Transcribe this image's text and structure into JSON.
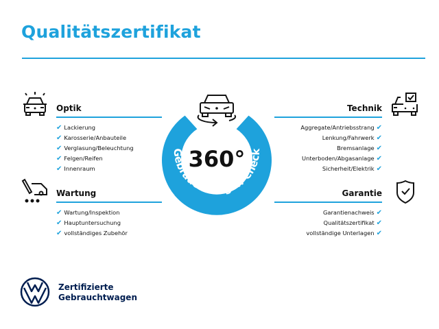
{
  "title": "Qualitätszertifikat",
  "accent_color": "#1ea2dc",
  "brand_color": "#001e50",
  "badge": {
    "number": "360°",
    "ring_text": "Gebrauchtwagen-Check",
    "icon": "car-rotate-icon"
  },
  "sections": {
    "optik": {
      "heading": "Optik",
      "icon": "car-lights-icon",
      "items": [
        "Lackierung",
        "Karosserie/Anbauteile",
        "Verglasung/Beleuchtung",
        "Felgen/Reifen",
        "Innenraum"
      ]
    },
    "wartung": {
      "heading": "Wartung",
      "icon": "service-van-icon",
      "items": [
        "Wartung/Inspektion",
        "Hauptuntersuchung",
        "vollständiges Zubehör"
      ]
    },
    "technik": {
      "heading": "Technik",
      "icon": "car-checkbox-icon",
      "items": [
        "Aggregate/Antriebsstrang",
        "Lenkung/Fahrwerk",
        "Bremsanlage",
        "Unterboden/Abgasanlage",
        "Sicherheit/Elektrik"
      ]
    },
    "garantie": {
      "heading": "Garantie",
      "icon": "shield-check-icon",
      "items": [
        "Garantienachweis",
        "Qualitätszertifikat",
        "vollständige Unterlagen"
      ]
    }
  },
  "check_mark": "✔",
  "footer": {
    "line1": "Zertifizierte",
    "line2": "Gebrauchtwagen",
    "logo": "VW"
  }
}
